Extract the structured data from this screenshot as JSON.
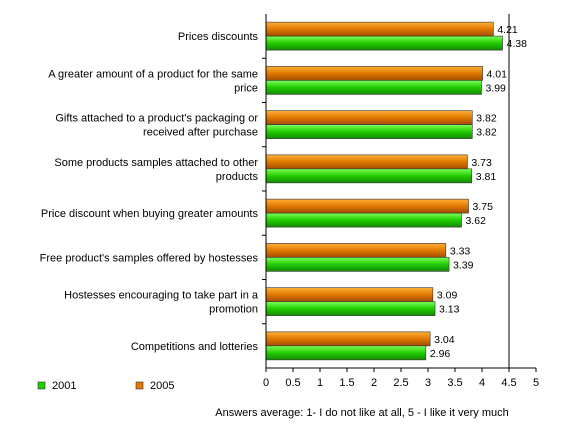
{
  "chart_data": {
    "type": "bar",
    "orientation": "horizontal",
    "categories": [
      [
        "Prices discounts"
      ],
      [
        "A greater amount of a product for the same",
        "price"
      ],
      [
        "Gifts attached to a product's packaging or",
        "received after purchase"
      ],
      [
        "Some products samples attached to other",
        "products"
      ],
      [
        "Price discount when buying greater amounts"
      ],
      [
        "Free product's samples offered by hostesses"
      ],
      [
        "Hostesses encouraging to take part in a",
        "promotion"
      ],
      [
        "Competitions and lotteries"
      ]
    ],
    "series": [
      {
        "name": "2005",
        "color": "#e07800",
        "values": [
          4.21,
          4.01,
          3.82,
          3.73,
          3.75,
          3.33,
          3.09,
          3.04
        ],
        "labels": [
          "4.21",
          "4.01",
          "3.82",
          "3.73",
          "3.75",
          "3.33",
          "3.09",
          "3.04"
        ]
      },
      {
        "name": "2001",
        "color": "#22cc00",
        "values": [
          4.38,
          3.99,
          3.82,
          3.81,
          3.62,
          3.39,
          3.13,
          2.96
        ],
        "labels": [
          "4.38",
          "3.99",
          "3.82",
          "3.81",
          "3.62",
          "3.39",
          "3.13",
          "2.96"
        ]
      }
    ],
    "legend_order": [
      "2001",
      "2005"
    ],
    "xlim": [
      0,
      5
    ],
    "xticks": [
      "0",
      "0.5",
      "1",
      "1.5",
      "2",
      "2.5",
      "3",
      "3.5",
      "4",
      "4.5",
      "5"
    ],
    "reference_line": 4.5,
    "xlabel": "Answers average: 1- I do not like at all,  5 - I like it very much",
    "legend_position": "bottom-left"
  }
}
